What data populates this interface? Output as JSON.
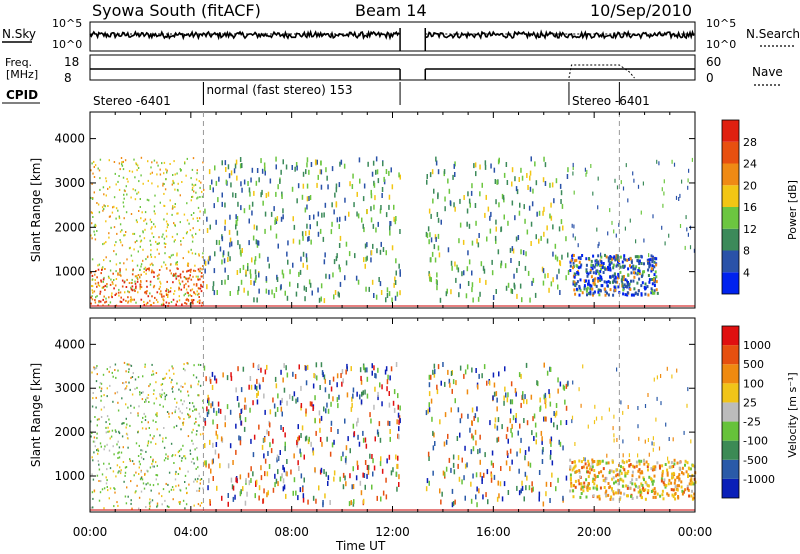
{
  "header": {
    "station": "Syowa South (fitACF)",
    "beam": "Beam 14",
    "date": "10/Sep/2010"
  },
  "status_panel": {
    "nsky_label": "N.Sky",
    "nsearch_label": "N.Search",
    "freq_label_1": "Freq.",
    "freq_label_2": "[MHz]",
    "nave_label": "Nave",
    "cpid_label": "CPID",
    "noise_ticks_left": [
      "10^5",
      "10^0"
    ],
    "noise_ticks_right": [
      "10^5",
      "10^0"
    ],
    "freq_ticks": [
      "18",
      "8"
    ],
    "nave_ticks": [
      "60",
      "0"
    ],
    "cpid_segments": [
      {
        "label": "Stereo -6401",
        "start_hour": 0.0,
        "end_hour": 4.5
      },
      {
        "label": "normal (fast stereo) 153",
        "start_hour": 4.5,
        "end_hour": 12.3
      },
      {
        "label": "Stereo -6401",
        "start_hour": 19.0,
        "end_hour": 21.0
      }
    ]
  },
  "chart_data": [
    {
      "type": "heatmap",
      "title": "Power",
      "ylabel": "Slant Range [km]",
      "xlabel": "Time UT",
      "xlim_hours": [
        0,
        24
      ],
      "ylim": [
        180,
        4600
      ],
      "y_ticks": [
        "1000",
        "2000",
        "3000",
        "4000"
      ],
      "x_ticks": [
        "00:00",
        "04:00",
        "08:00",
        "12:00",
        "16:00",
        "20:00",
        "00:00"
      ],
      "data_gap_hours": [
        12.3,
        13.3
      ],
      "colorbar": {
        "label": "Power [dB]",
        "ticks": [
          "4",
          "8",
          "12",
          "16",
          "20",
          "24",
          "28"
        ],
        "colors": [
          "#0022ee",
          "#2a52a8",
          "#3c8a5a",
          "#6cc640",
          "#f2c614",
          "#ef8a14",
          "#e85010",
          "#e02010"
        ]
      }
    },
    {
      "type": "heatmap",
      "title": "Velocity",
      "ylabel": "Slant Range [km]",
      "xlabel": "Time UT",
      "xlim_hours": [
        0,
        24
      ],
      "ylim": [
        180,
        4600
      ],
      "y_ticks": [
        "1000",
        "2000",
        "3000",
        "4000"
      ],
      "x_ticks": [
        "00:00",
        "04:00",
        "08:00",
        "12:00",
        "16:00",
        "20:00",
        "00:00"
      ],
      "data_gap_hours": [
        12.3,
        13.3
      ],
      "colorbar": {
        "label": "Velocity [m s⁻¹]",
        "ticks": [
          "1000",
          "500",
          "100",
          "25",
          "-25",
          "-100",
          "-500",
          "-1000"
        ],
        "colors": [
          "#0a1fb8",
          "#2a5aa8",
          "#3c8a55",
          "#66c23a",
          "#bcbcbc",
          "#f0c419",
          "#ef8a10",
          "#e65010",
          "#e01010"
        ]
      }
    }
  ]
}
